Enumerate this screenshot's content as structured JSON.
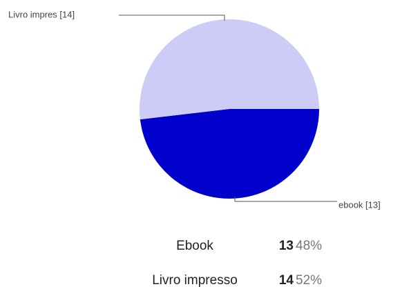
{
  "chart_data": {
    "type": "pie",
    "categories": [
      "Ebook",
      "Livro impresso"
    ],
    "values": [
      13,
      14
    ],
    "colors": [
      "#0000cc",
      "#ccccf7"
    ],
    "callout_labels": [
      "ebook [13]",
      "Livro impres [14]"
    ]
  },
  "table": {
    "percent": [
      "48%",
      "52%"
    ]
  }
}
